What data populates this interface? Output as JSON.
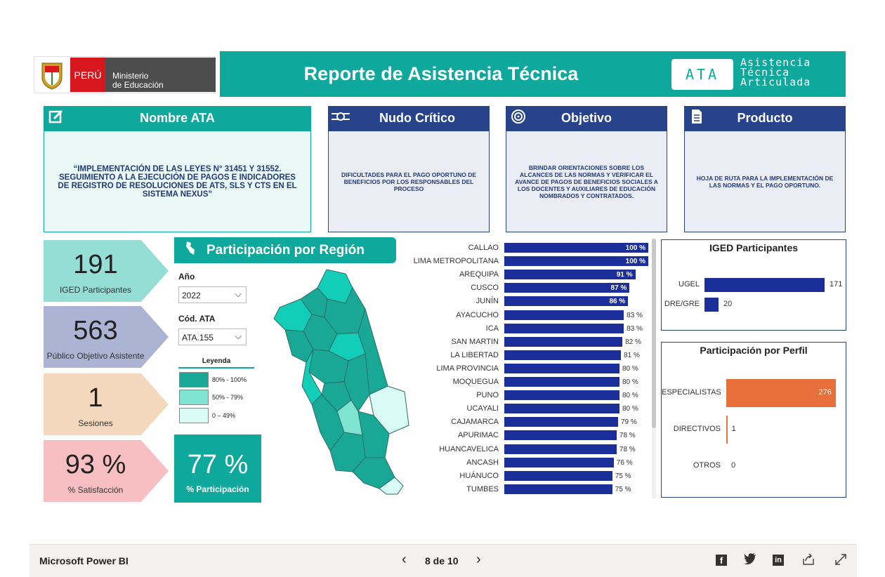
{
  "header": {
    "logo_country": "PERÚ",
    "logo_ministry_line1": "Ministerio",
    "logo_ministry_line2": "de Educación",
    "title": "Reporte de Asistencia Técnica",
    "ata_badge": "ATA",
    "ata_line1": "Asistencia",
    "ata_line2": "Técnica",
    "ata_line3": "Articulada"
  },
  "cards": [
    {
      "title": "Nombre ATA",
      "icon": "edit-icon",
      "body": "“IMPLEMENTACIÓN DE LAS LEYES N° 31451 Y 31552. SEGUIMIENTO A LA EJECUCIÓN DE PAGOS E INDICADORES DE REGISTRO DE RESOLUCIONES DE ATS, SLS Y CTS EN EL SISTEMA NEXUS”"
    },
    {
      "title": "Nudo Crítico",
      "icon": "pipeline-icon",
      "body": "DIFICULTADES PARA EL PAGO OPORTUNO DE BENEFICIOS POR LOS RESPONSABLES DEL PROCESO"
    },
    {
      "title": "Objetivo",
      "icon": "target-icon",
      "body": "BRINDAR ORIENTACIONES  SOBRE LOS ALCANCES DE LAS NORMAS Y VERIFICAR EL AVANCE DE PAGOS DE BENEFICIOS SOCIALES A LOS DOCENTES Y AUXILIARES DE EDUCACIÓN NOMBRADOS Y CONTRATADOS."
    },
    {
      "title": "Producto",
      "icon": "document-icon",
      "body": "HOJA DE RUTA PARA LA IMPLEMENTACIÓN DE LAS NORMAS Y EL PAGO OPORTUNO."
    }
  ],
  "kpis": [
    {
      "value": "191",
      "label": "IGED Participantes",
      "color": "#95ded6"
    },
    {
      "value": "563",
      "label": "Público Objetivo Asistente",
      "color": "#abb4d2"
    },
    {
      "value": "1",
      "label": "Sesiones",
      "color": "#f3d8bd"
    },
    {
      "value": "93 %",
      "label": "% Satisfacción",
      "color": "#f7bfc2"
    }
  ],
  "region_panel": {
    "title": "Participación por Región",
    "year_label": "Año",
    "year_value": "2022",
    "code_label": "Cód. ATA",
    "code_value": "ATA.155",
    "legend_title": "Leyenda",
    "legend": [
      {
        "label": "80% - 100%",
        "color": "#1aa896"
      },
      {
        "label": "50% - 79%",
        "color": "#7fe3d2"
      },
      {
        "label": "0 – 49%",
        "color": "#d9fbf6"
      }
    ],
    "participation_value": "77 %",
    "participation_label": "% Participación"
  },
  "region_chart": {
    "type": "bar",
    "categories": [
      "CALLAO",
      "LIMA METROPOLITANA",
      "AREQUIPA",
      "CUSCO",
      "JUNÍN",
      "AYACUCHO",
      "ICA",
      "SAN MARTIN",
      "LA LIBERTAD",
      "LIMA PROVINCIA",
      "MOQUEGUA",
      "PUNO",
      "UCAYALI",
      "CAJAMARCA",
      "APURIMAC",
      "HUANCAVELICA",
      "ANCASH",
      "HUÁNUCO",
      "TUMBES"
    ],
    "values": [
      100,
      100,
      91,
      87,
      86,
      83,
      83,
      82,
      81,
      80,
      80,
      80,
      80,
      79,
      78,
      78,
      76,
      75,
      75
    ],
    "labels": [
      "100 %",
      "100 %",
      "91 %",
      "87 %",
      "86 %",
      "83 %",
      "83 %",
      "82 %",
      "81 %",
      "80 %",
      "80 %",
      "80 %",
      "80 %",
      "79 %",
      "78 %",
      "78 %",
      "76 %",
      "75 %",
      "75 %"
    ],
    "color": "#1b2f9a"
  },
  "chart_data": [
    {
      "type": "bar",
      "title": "IGED Participantes",
      "categories": [
        "UGEL",
        "DRE/GRE"
      ],
      "values": [
        171,
        20
      ],
      "color": "#1b2f9a"
    },
    {
      "type": "bar",
      "title": "Participación por Perfil",
      "categories": [
        "ESPECIALISTAS",
        "DIRECTIVOS",
        "OTROS"
      ],
      "values": [
        276,
        1,
        0
      ],
      "color": "#e86e3a"
    }
  ],
  "footer": {
    "brand": "Microsoft Power BI",
    "pager": "8 de 10",
    "prev_icon": "chevron-left-icon",
    "next_icon": "chevron-right-icon"
  }
}
